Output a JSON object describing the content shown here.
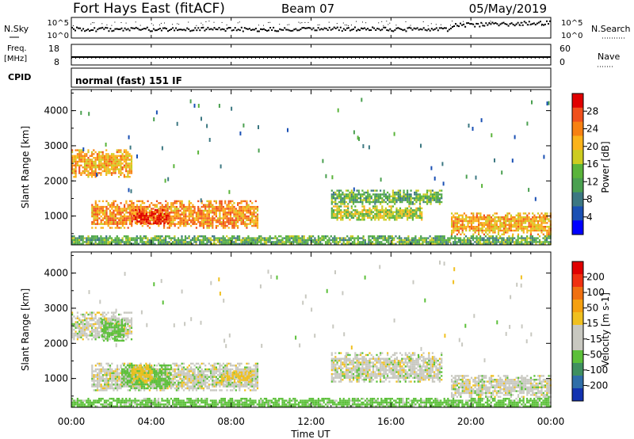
{
  "header": {
    "station": "Fort Hays East (fitACF)",
    "beam": "Beam 07",
    "date": "05/May/2019",
    "cpid_label": "CPID",
    "cpid_mode": "normal (fast) 151 IF"
  },
  "top_panels": {
    "nsky_label": "N.Sky",
    "nsearch_label": "N.Search",
    "nsky_ticks": [
      "10^5",
      "10^0"
    ],
    "freq_label": "Freq.",
    "freq_unit": "[MHz]",
    "freq_ticks": [
      "18",
      "8"
    ],
    "nave_label": "Nave",
    "nave_ticks": [
      "60",
      "0"
    ]
  },
  "axes": {
    "ylabel": "Slant Range [km]",
    "xlabel": "Time UT",
    "yticks": [
      "4000",
      "3000",
      "2000",
      "1000"
    ],
    "xticks": [
      "00:00",
      "04:00",
      "08:00",
      "12:00",
      "16:00",
      "20:00",
      "00:00"
    ]
  },
  "colorbars": {
    "power": {
      "label": "Power [dB]",
      "ticks": [
        "28",
        "24",
        "20",
        "16",
        "12",
        "8",
        "4"
      ],
      "colors": [
        "#0000ff",
        "#1a50b4",
        "#3c7882",
        "#4aa050",
        "#5ab43a",
        "#cdcc20",
        "#fbb31a",
        "#f78112",
        "#f0501c",
        "#e00000"
      ]
    },
    "velocity": {
      "label": "Velocity [m s-1]",
      "ticks": [
        "200",
        "100",
        "50",
        "15",
        "-15",
        "-50",
        "-100",
        "-200"
      ],
      "colors": [
        "#1232b0",
        "#2f6ea8",
        "#3f9060",
        "#5cc03a",
        "#c8c8c0",
        "#c8c8c0",
        "#f0c020",
        "#f5a010",
        "#f07010",
        "#f03010",
        "#e00000"
      ]
    }
  },
  "chart_data": [
    {
      "type": "heatmap",
      "title": "Power",
      "xlabel": "Time UT",
      "ylabel": "Slant Range [km]",
      "xlim": [
        "00:00",
        "24:00"
      ],
      "ylim": [
        180,
        4600
      ],
      "zlabel": "Power [dB]",
      "zlim": [
        0,
        30
      ],
      "regions": [
        {
          "t0": 0.0,
          "t1": 3.0,
          "r0": 2100,
          "r1": 2900,
          "level": 20
        },
        {
          "t0": 1.0,
          "t1": 9.3,
          "r0": 650,
          "r1": 1450,
          "level": 22
        },
        {
          "t0": 3.0,
          "t1": 4.8,
          "r0": 800,
          "r1": 1200,
          "level": 28
        },
        {
          "t0": 13.0,
          "t1": 18.5,
          "r0": 1350,
          "r1": 1750,
          "level": 12
        },
        {
          "t0": 13.0,
          "t1": 17.5,
          "r0": 900,
          "r1": 1300,
          "level": 16
        },
        {
          "t0": 19.0,
          "t1": 24.0,
          "r0": 500,
          "r1": 1100,
          "level": 20
        },
        {
          "t0": 0.0,
          "t1": 24.0,
          "r0": 180,
          "r1": 450,
          "level": 12
        }
      ]
    },
    {
      "type": "heatmap",
      "title": "Velocity",
      "xlabel": "Time UT",
      "ylabel": "Slant Range [km]",
      "xlim": [
        "00:00",
        "24:00"
      ],
      "ylim": [
        180,
        4600
      ],
      "zlabel": "Velocity [m s-1]",
      "zlim": [
        -200,
        200
      ],
      "regions": [
        {
          "t0": 0.0,
          "t1": 3.0,
          "r0": 2100,
          "r1": 2900,
          "level": 0
        },
        {
          "t0": 1.5,
          "t1": 2.6,
          "r0": 2100,
          "r1": 2700,
          "level": 30
        },
        {
          "t0": 1.0,
          "t1": 9.3,
          "r0": 650,
          "r1": 1450,
          "level": 0
        },
        {
          "t0": 2.5,
          "t1": 5.0,
          "r0": 750,
          "r1": 1400,
          "level": 30
        },
        {
          "t0": 3.0,
          "t1": 4.0,
          "r0": 900,
          "r1": 1400,
          "level": -30
        },
        {
          "t0": 7.5,
          "t1": 9.0,
          "r0": 900,
          "r1": 1200,
          "level": -30
        },
        {
          "t0": 13.0,
          "t1": 18.5,
          "r0": 900,
          "r1": 1750,
          "level": 0
        },
        {
          "t0": 19.0,
          "t1": 24.0,
          "r0": 500,
          "r1": 1100,
          "level": 0
        },
        {
          "t0": 0.0,
          "t1": 24.0,
          "r0": 180,
          "r1": 450,
          "level": 30
        }
      ]
    }
  ]
}
